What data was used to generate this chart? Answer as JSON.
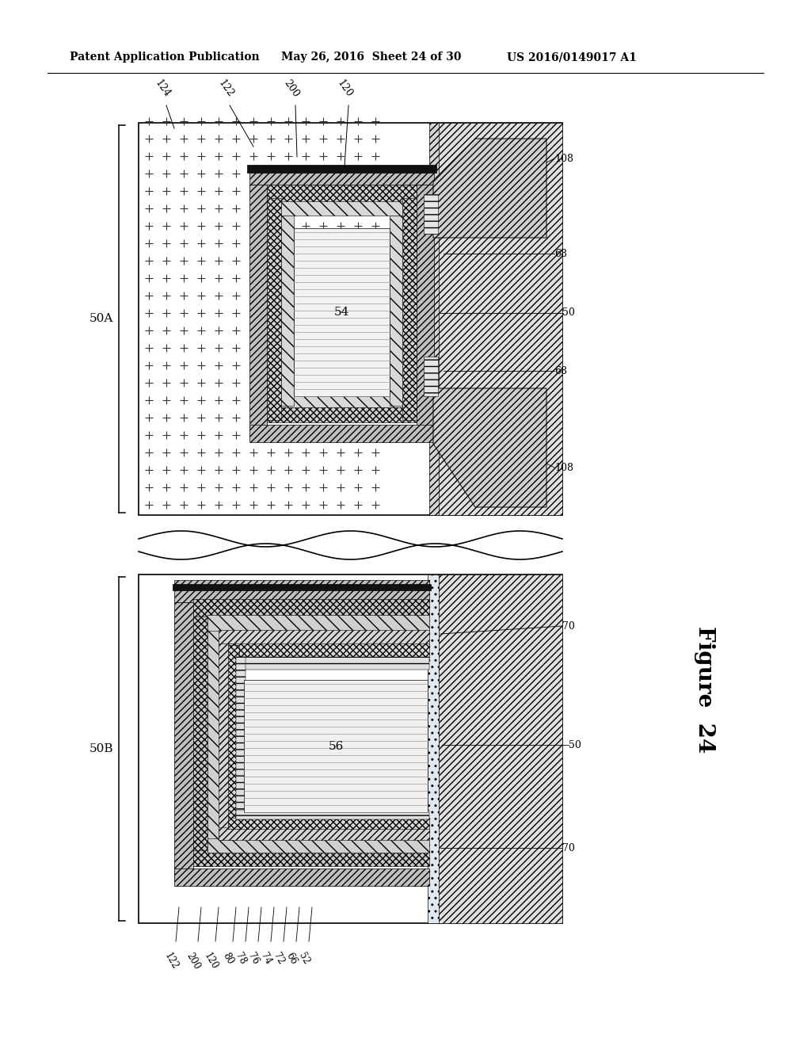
{
  "title_left": "Patent Application Publication",
  "title_mid": "May 26, 2016  Sheet 24 of 30",
  "title_right": "US 2016/0149017 A1",
  "figure_label": "Figure  24",
  "bg_color": "#ffffff",
  "label_50A": "50A",
  "label_50B": "50B",
  "labels_top": [
    "124",
    "122",
    "200",
    "120"
  ],
  "labels_right_top": [
    "108",
    "68",
    "50",
    "68",
    "108"
  ],
  "label_54": "54",
  "label_56": "56",
  "label_50_mid": "50",
  "labels_bottom": [
    "122",
    "200",
    "120",
    "80",
    "78",
    "76",
    "74",
    "72",
    "66",
    "52"
  ],
  "labels_right_bot": [
    "70",
    "50",
    "70"
  ]
}
